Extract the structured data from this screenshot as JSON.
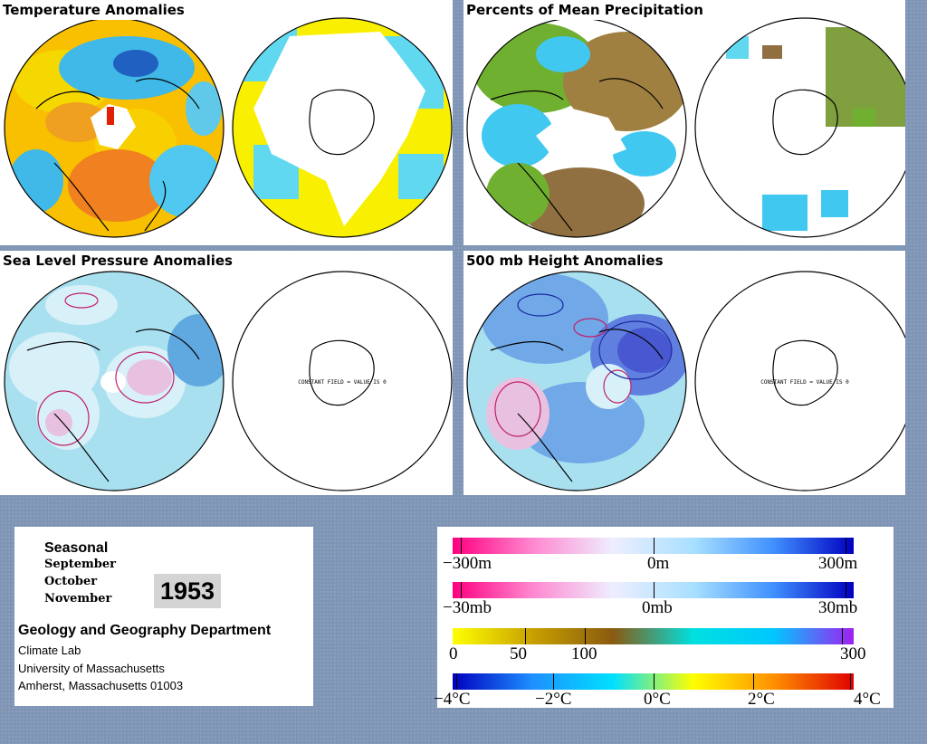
{
  "panels": [
    {
      "title": "Temperature Anomalies",
      "field": "temp",
      "note": ""
    },
    {
      "title": "Percents of Mean Precipitation",
      "field": "precip",
      "note": ""
    },
    {
      "title": "Sea Level Pressure Anomalies",
      "field": "slp",
      "note": "CONSTANT FIELD = VALUE IS 0"
    },
    {
      "title": "500 mb Height Anomalies",
      "field": "hgt",
      "note": "CONSTANT FIELD = VALUE IS 0"
    }
  ],
  "info": {
    "period_type": "Seasonal",
    "months": [
      "September",
      "October",
      "November"
    ],
    "year": "1953",
    "department": "Geology and Geography Department",
    "lab": "Climate Lab",
    "university": "University of Massachusetts",
    "address": "Amherst, Massachusetts 01003"
  },
  "legend": {
    "height": {
      "labels": [
        "−300m",
        "0m",
        "300m"
      ],
      "stops": [
        "#ff0080",
        "#ff88d0",
        "#eeeeff",
        "#a8e0ff",
        "#4090ff",
        "#0000c0"
      ]
    },
    "pressure": {
      "labels": [
        "−30mb",
        "0mb",
        "30mb"
      ],
      "stops": [
        "#ff0080",
        "#ff88d0",
        "#eeeeff",
        "#a8e0ff",
        "#4090ff",
        "#0000c0"
      ]
    },
    "precip": {
      "labels": [
        "0",
        "50",
        "100",
        "300"
      ],
      "stops": [
        "#ffff00",
        "#c8a000",
        "#8a5a10",
        "#00e0e0",
        "#00c8ff",
        "#a020f0"
      ]
    },
    "temp": {
      "labels": [
        "−4°C",
        "−2°C",
        "0°C",
        "2°C",
        "4°C"
      ],
      "stops": [
        "#0000c0",
        "#1e90ff",
        "#00e0ff",
        "#ffff00",
        "#ff9000",
        "#e00000"
      ]
    }
  },
  "colors": {
    "background": "#7f95b6",
    "panel": "#ffffff"
  }
}
